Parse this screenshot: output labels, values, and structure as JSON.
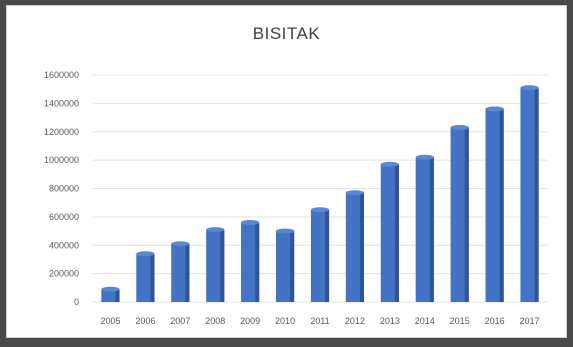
{
  "chart_data": {
    "type": "bar",
    "title": "BISITAK",
    "categories": [
      "2005",
      "2006",
      "2007",
      "2008",
      "2009",
      "2010",
      "2011",
      "2012",
      "2013",
      "2014",
      "2015",
      "2016",
      "2017"
    ],
    "values": [
      90000,
      340000,
      410000,
      510000,
      560000,
      500000,
      650000,
      770000,
      970000,
      1020000,
      1230000,
      1360000,
      1510000
    ],
    "yticks": [
      0,
      200000,
      400000,
      600000,
      800000,
      1000000,
      1200000,
      1400000,
      1600000
    ],
    "ylim": [
      0,
      1600000
    ],
    "grid": true,
    "legend": "none",
    "bar_color": "#4472c4",
    "bar_dark_color": "#2f5597"
  }
}
